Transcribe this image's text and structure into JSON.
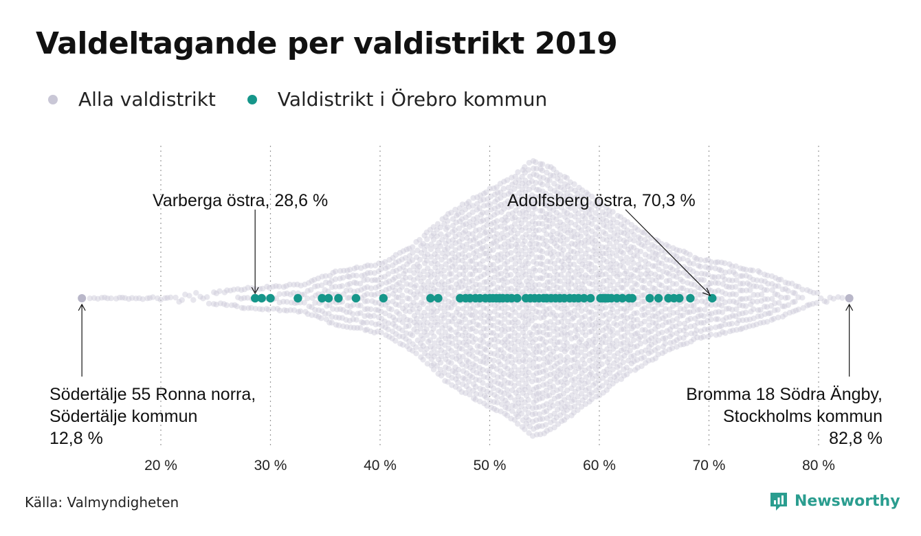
{
  "title": "Valdeltagande per valdistrikt 2019",
  "legend": [
    {
      "label": "Alla valdistrikt",
      "color": "#c9c7d6"
    },
    {
      "label": "Valdistrikt i Örebro kommun",
      "color": "#16968a"
    }
  ],
  "source": "Källa: Valmyndigheten",
  "brand": "Newsworthy",
  "chart_data": {
    "type": "scatter",
    "subtype": "beeswarm",
    "xlim": [
      10,
      90
    ],
    "x_ticks": [
      20,
      30,
      40,
      50,
      60,
      70,
      80
    ],
    "x_tick_labels": [
      "20 %",
      "30 %",
      "40 %",
      "50 %",
      "60 %",
      "70 %",
      "80 %"
    ],
    "grid": "vertical dotted",
    "series": [
      {
        "name": "Alla valdistrikt",
        "color": "#c9c7d6",
        "min": 12.8,
        "max": 82.8,
        "peak": 53.8,
        "density_profile": [
          [
            13,
            0
          ],
          [
            18,
            1
          ],
          [
            22,
            3
          ],
          [
            25,
            8
          ],
          [
            28,
            14
          ],
          [
            30,
            16
          ],
          [
            33,
            20
          ],
          [
            36,
            38
          ],
          [
            40,
            50
          ],
          [
            43,
            75
          ],
          [
            46,
            120
          ],
          [
            49,
            150
          ],
          [
            51,
            165
          ],
          [
            52.5,
            180
          ],
          [
            53.8,
            200
          ],
          [
            55,
            195
          ],
          [
            57,
            175
          ],
          [
            60,
            140
          ],
          [
            63,
            105
          ],
          [
            66,
            78
          ],
          [
            69,
            58
          ],
          [
            72,
            48
          ],
          [
            75,
            36
          ],
          [
            77,
            24
          ],
          [
            79,
            11
          ],
          [
            81,
            4
          ],
          [
            83,
            0
          ]
        ]
      },
      {
        "name": "Valdistrikt i Örebro kommun",
        "color": "#16968a",
        "values": [
          28.6,
          29.2,
          30.0,
          32.5,
          34.7,
          35.3,
          36.2,
          37.8,
          40.3,
          44.6,
          45.3,
          47.3,
          47.8,
          48.2,
          48.7,
          49.1,
          49.6,
          50.0,
          50.3,
          50.6,
          50.9,
          51.2,
          51.6,
          52.0,
          52.5,
          53.3,
          53.7,
          54.1,
          54.5,
          54.9,
          55.2,
          55.6,
          56.0,
          56.4,
          56.8,
          57.3,
          57.7,
          58.1,
          58.6,
          59.2,
          60.1,
          60.3,
          60.5,
          60.6,
          60.8,
          61.1,
          61.6,
          62.1,
          62.7,
          63.0,
          64.6,
          65.4,
          66.3,
          66.8,
          67.3,
          68.3,
          70.3
        ]
      }
    ],
    "annotations": [
      {
        "lines": [
          "Varberga östra, 28,6 %"
        ],
        "value": 28.6,
        "position": "above",
        "anchor": "start"
      },
      {
        "lines": [
          "Adolfsberg östra, 70,3 %"
        ],
        "value": 70.3,
        "position": "above",
        "anchor": "start"
      },
      {
        "lines": [
          "Södertälje 55 Ronna norra,",
          "Södertälje kommun",
          "12,8 %"
        ],
        "value": 12.8,
        "position": "below",
        "anchor": "start"
      },
      {
        "lines": [
          "Bromma 18 Södra Ängby,",
          "Stockholms kommun",
          "82,8 %"
        ],
        "value": 82.8,
        "position": "below",
        "anchor": "end"
      }
    ]
  }
}
